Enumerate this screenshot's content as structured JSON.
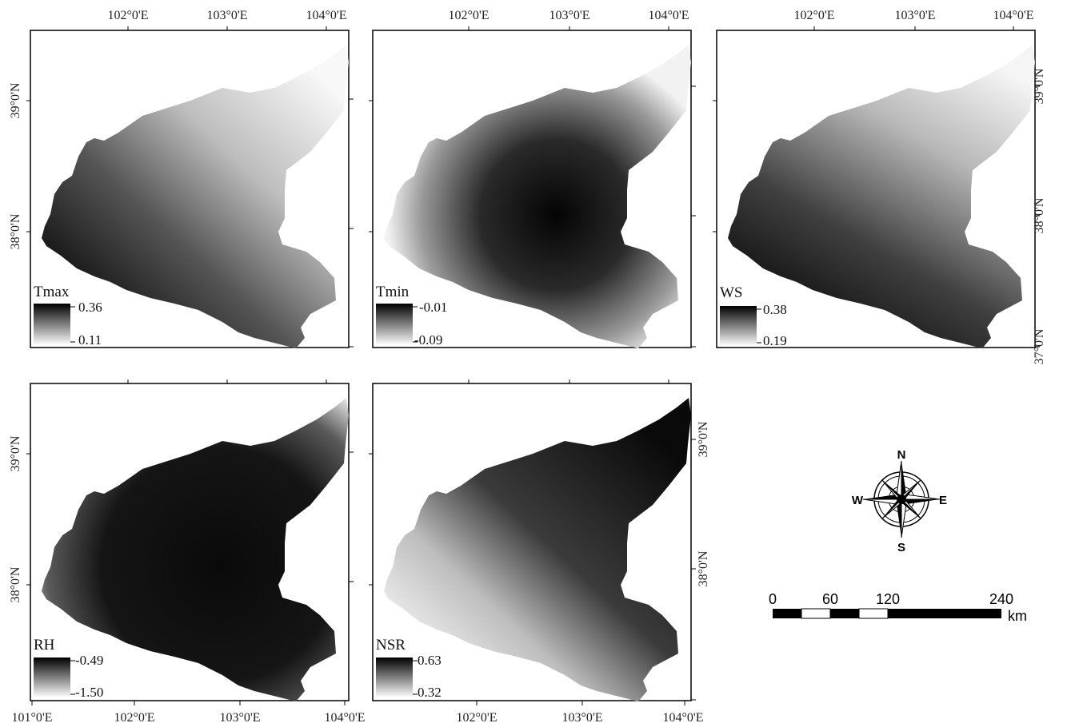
{
  "panels": [
    {
      "id": "tmax",
      "variable": "Tmax",
      "legend_max": "0.36",
      "legend_min": "0.11",
      "top_ticks": [
        "102°0'E",
        "103°0'E",
        "104°0'E"
      ],
      "bottom_ticks": [],
      "left_ticks": [
        "39°0'N",
        "38°0'N"
      ],
      "right_ticks": []
    },
    {
      "id": "tmin",
      "variable": "Tmin",
      "legend_max": "-0.01",
      "legend_min": "-0.09",
      "top_ticks": [
        "102°0'E",
        "103°0'E",
        "104°0'E"
      ],
      "bottom_ticks": [],
      "left_ticks": [],
      "right_ticks": []
    },
    {
      "id": "ws",
      "variable": "WS",
      "legend_max": "0.38",
      "legend_min": "0.19",
      "top_ticks": [
        "102°0'E",
        "103°0'E",
        "104°0'E"
      ],
      "bottom_ticks": [],
      "left_ticks": [],
      "right_ticks": [
        "39°0'N",
        "38°0'N",
        "37°0'N"
      ]
    },
    {
      "id": "rh",
      "variable": "RH",
      "legend_max": "-0.49",
      "legend_min": "-1.50",
      "top_ticks": [],
      "bottom_ticks": [
        "101°0'E",
        "102°0'E",
        "103°0'E",
        "104°0'E"
      ],
      "left_ticks": [
        "39°0'N",
        "38°0'N"
      ],
      "right_ticks": []
    },
    {
      "id": "nsr",
      "variable": "NSR",
      "legend_max": "0.63",
      "legend_min": "0.32",
      "top_ticks": [],
      "bottom_ticks": [
        "102°0'E",
        "103°0'E",
        "104°0'E"
      ],
      "left_ticks": [],
      "right_ticks": [
        "39°0'N",
        "38°0'N"
      ]
    }
  ],
  "compass": {
    "n": "N",
    "s": "S",
    "e": "E",
    "w": "W"
  },
  "scale_bar": {
    "labels": [
      "0",
      "60",
      "120",
      "240"
    ],
    "unit": "km"
  }
}
